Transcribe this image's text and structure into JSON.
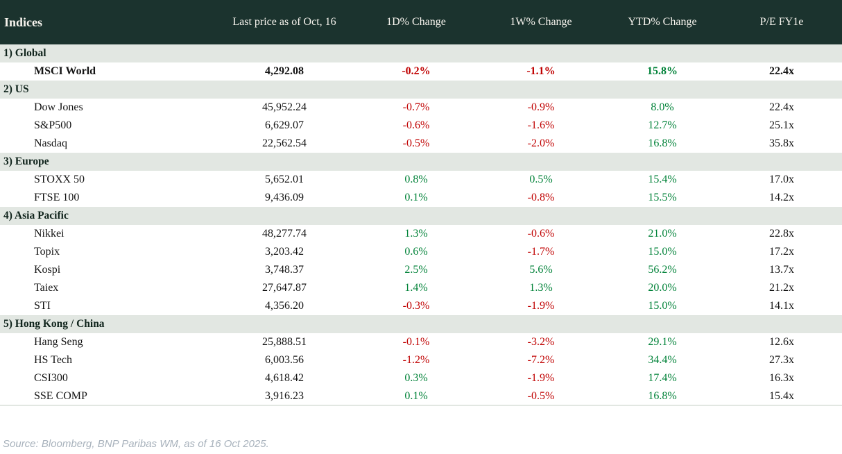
{
  "table": {
    "title": "Indices",
    "columns": [
      "Last price as of Oct, 16",
      "1D% Change",
      "1W% Change",
      "YTD% Change",
      "P/E FY1e"
    ],
    "sections": [
      {
        "label": "1) Global",
        "rows": [
          {
            "name": "MSCI World",
            "price": "4,292.08",
            "d1": "-0.2%",
            "w1": "-1.1%",
            "ytd": "15.8%",
            "pe": "22.4x",
            "emphasis": true
          }
        ]
      },
      {
        "label": "2) US",
        "rows": [
          {
            "name": "Dow Jones",
            "price": "45,952.24",
            "d1": "-0.7%",
            "w1": "-0.9%",
            "ytd": "8.0%",
            "pe": "22.4x"
          },
          {
            "name": "S&P500",
            "price": "6,629.07",
            "d1": "-0.6%",
            "w1": "-1.6%",
            "ytd": "12.7%",
            "pe": "25.1x"
          },
          {
            "name": "Nasdaq",
            "price": "22,562.54",
            "d1": "-0.5%",
            "w1": "-2.0%",
            "ytd": "16.8%",
            "pe": "35.8x"
          }
        ]
      },
      {
        "label": "3) Europe",
        "rows": [
          {
            "name": "STOXX 50",
            "price": "5,652.01",
            "d1": "0.8%",
            "w1": "0.5%",
            "ytd": "15.4%",
            "pe": "17.0x"
          },
          {
            "name": "FTSE 100",
            "price": "9,436.09",
            "d1": "0.1%",
            "w1": "-0.8%",
            "ytd": "15.5%",
            "pe": "14.2x"
          }
        ]
      },
      {
        "label": "4) Asia Pacific",
        "rows": [
          {
            "name": "Nikkei",
            "price": "48,277.74",
            "d1": "1.3%",
            "w1": "-0.6%",
            "ytd": "21.0%",
            "pe": "22.8x"
          },
          {
            "name": "Topix",
            "price": "3,203.42",
            "d1": "0.6%",
            "w1": "-1.7%",
            "ytd": "15.0%",
            "pe": "17.2x"
          },
          {
            "name": "Kospi",
            "price": "3,748.37",
            "d1": "2.5%",
            "w1": "5.6%",
            "ytd": "56.2%",
            "pe": "13.7x"
          },
          {
            "name": "Taiex",
            "price": "27,647.87",
            "d1": "1.4%",
            "w1": "1.3%",
            "ytd": "20.0%",
            "pe": "21.2x"
          },
          {
            "name": "STI",
            "price": "4,356.20",
            "d1": "-0.3%",
            "w1": "-1.9%",
            "ytd": "15.0%",
            "pe": "14.1x"
          }
        ]
      },
      {
        "label": "5) Hong Kong / China",
        "rows": [
          {
            "name": "Hang Seng",
            "price": "25,888.51",
            "d1": "-0.1%",
            "w1": "-3.2%",
            "ytd": "29.1%",
            "pe": "12.6x"
          },
          {
            "name": "HS Tech",
            "price": "6,003.56",
            "d1": "-1.2%",
            "w1": "-7.2%",
            "ytd": "34.4%",
            "pe": "27.3x"
          },
          {
            "name": "CSI300",
            "price": "4,618.42",
            "d1": "0.3%",
            "w1": "-1.9%",
            "ytd": "17.4%",
            "pe": "16.3x"
          },
          {
            "name": "SSE COMP",
            "price": "3,916.23",
            "d1": "0.1%",
            "w1": "-0.5%",
            "ytd": "16.8%",
            "pe": "15.4x"
          }
        ]
      }
    ]
  },
  "footer": {
    "source": "Source: Bloomberg, BNP Paribas WM, as of 16 Oct 2025."
  },
  "colors": {
    "header_bg": "#1b332e",
    "header_fg": "#f7f4ee",
    "section_bg": "#e2e7e2",
    "positive": "#008238",
    "negative": "#c00000",
    "source_fg": "#a8b2bc"
  },
  "chart_data": {
    "type": "table",
    "title": "Indices",
    "columns": [
      "Index",
      "Last price as of Oct, 16",
      "1D% Change",
      "1W% Change",
      "YTD% Change",
      "P/E FY1e"
    ],
    "groups": {
      "1) Global": [
        [
          "MSCI World",
          4292.08,
          -0.2,
          -1.1,
          15.8,
          22.4
        ]
      ],
      "2) US": [
        [
          "Dow Jones",
          45952.24,
          -0.7,
          -0.9,
          8.0,
          22.4
        ],
        [
          "S&P500",
          6629.07,
          -0.6,
          -1.6,
          12.7,
          25.1
        ],
        [
          "Nasdaq",
          22562.54,
          -0.5,
          -2.0,
          16.8,
          35.8
        ]
      ],
      "3) Europe": [
        [
          "STOXX 50",
          5652.01,
          0.8,
          0.5,
          15.4,
          17.0
        ],
        [
          "FTSE 100",
          9436.09,
          0.1,
          -0.8,
          15.5,
          14.2
        ]
      ],
      "4) Asia Pacific": [
        [
          "Nikkei",
          48277.74,
          1.3,
          -0.6,
          21.0,
          22.8
        ],
        [
          "Topix",
          3203.42,
          0.6,
          -1.7,
          15.0,
          17.2
        ],
        [
          "Kospi",
          3748.37,
          2.5,
          5.6,
          56.2,
          13.7
        ],
        [
          "Taiex",
          27647.87,
          1.4,
          1.3,
          20.0,
          21.2
        ],
        [
          "STI",
          4356.2,
          -0.3,
          -1.9,
          15.0,
          14.1
        ]
      ],
      "5) Hong Kong / China": [
        [
          "Hang Seng",
          25888.51,
          -0.1,
          -3.2,
          29.1,
          12.6
        ],
        [
          "HS Tech",
          6003.56,
          -1.2,
          -7.2,
          34.4,
          27.3
        ],
        [
          "CSI300",
          4618.42,
          0.3,
          -1.9,
          17.4,
          16.3
        ],
        [
          "SSE COMP",
          3916.23,
          0.1,
          -0.5,
          16.8,
          15.4
        ]
      ]
    },
    "notes": "negative % values shown in red, positive % values in green; MSCI World row emphasized bold"
  }
}
